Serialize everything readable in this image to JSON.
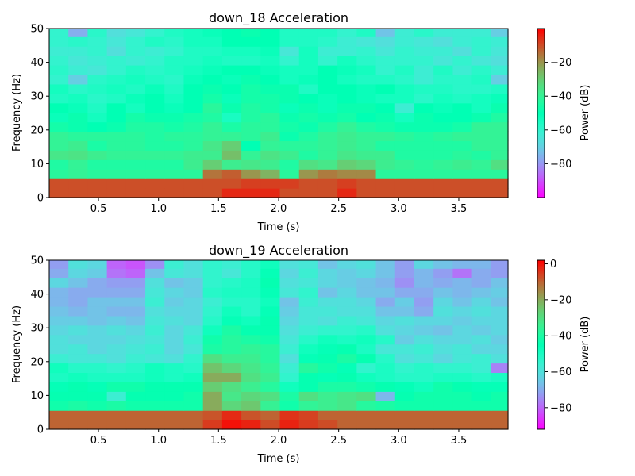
{
  "chart_data": [
    {
      "type": "heatmap",
      "title": "down_18 Acceleration",
      "xlabel": "Time (s)",
      "ylabel": "Frequency (Hz)",
      "xlim": [
        0.09,
        3.91
      ],
      "ylim": [
        0,
        50
      ],
      "x_ticks": [
        "0.5",
        "1.0",
        "1.5",
        "2.0",
        "2.5",
        "3.0",
        "3.5"
      ],
      "x_tick_values": [
        0.5,
        1.0,
        1.5,
        2.0,
        2.5,
        3.0,
        3.5
      ],
      "y_ticks": [
        "0",
        "10",
        "20",
        "30",
        "40",
        "50"
      ],
      "y_tick_values": [
        0,
        10,
        20,
        30,
        40,
        50
      ],
      "time_start": 0.09,
      "time_step": 0.16,
      "freq_step": 2.8,
      "colorbar": {
        "label": "Power (dB)",
        "range": [
          -100,
          0
        ],
        "ticks": [
          "−20",
          "−40",
          "−60",
          "−80"
        ],
        "tick_values": [
          -20,
          -40,
          -60,
          -80
        ],
        "colormap": "rainbow"
      },
      "power_db_rows_low_to_high_freq": [
        [
          -10,
          -10,
          -10,
          -10,
          -10,
          -10,
          -10,
          -10,
          -10,
          -5,
          -5,
          -5,
          -10,
          -10,
          -10,
          -5,
          -10,
          -10,
          -10,
          -10,
          -10,
          -10,
          -10,
          -10
        ],
        [
          -10,
          -10,
          -10,
          -10,
          -10,
          -10,
          -10,
          -10,
          -10,
          -10,
          -8,
          -8,
          -8,
          -10,
          -10,
          -8,
          -10,
          -10,
          -10,
          -10,
          -10,
          -10,
          -10,
          -10
        ],
        [
          -42,
          -40,
          -42,
          -42,
          -42,
          -42,
          -42,
          -42,
          -15,
          -12,
          -20,
          -25,
          -42,
          -20,
          -16,
          -18,
          -18,
          -42,
          -42,
          -42,
          -42,
          -42,
          -42,
          -42
        ],
        [
          -44,
          -40,
          -44,
          -44,
          -44,
          -44,
          -44,
          -38,
          -30,
          -38,
          -36,
          -38,
          -44,
          -34,
          -36,
          -30,
          -32,
          -38,
          -40,
          -42,
          -40,
          -38,
          -40,
          -34
        ],
        [
          -36,
          -35,
          -38,
          -40,
          -40,
          -40,
          -40,
          -38,
          -38,
          -27,
          -40,
          -35,
          -38,
          -44,
          -40,
          -36,
          -38,
          -38,
          -44,
          -44,
          -44,
          -42,
          -44,
          -40
        ],
        [
          -40,
          -38,
          -45,
          -42,
          -42,
          -44,
          -44,
          -42,
          -36,
          -30,
          -50,
          -40,
          -42,
          -42,
          -40,
          -38,
          -40,
          -44,
          -44,
          -44,
          -44,
          -44,
          -40,
          -40
        ],
        [
          -40,
          -42,
          -42,
          -42,
          -42,
          -44,
          -42,
          -42,
          -40,
          -40,
          -42,
          -38,
          -48,
          -44,
          -40,
          -38,
          -40,
          -40,
          -42,
          -44,
          -42,
          -40,
          -40,
          -40
        ],
        [
          -46,
          -48,
          -50,
          -48,
          -44,
          -44,
          -46,
          -44,
          -40,
          -45,
          -42,
          -42,
          -46,
          -48,
          -44,
          -40,
          -44,
          -46,
          -48,
          -48,
          -48,
          -46,
          -40,
          -40
        ],
        [
          -52,
          -48,
          -54,
          -50,
          -46,
          -48,
          -48,
          -46,
          -44,
          -55,
          -44,
          -42,
          -48,
          -46,
          -48,
          -46,
          -50,
          -48,
          -54,
          -48,
          -50,
          -50,
          -48,
          -44
        ],
        [
          -50,
          -52,
          -56,
          -50,
          -54,
          -50,
          -52,
          -50,
          -42,
          -48,
          -44,
          -46,
          -52,
          -48,
          -52,
          -48,
          -48,
          -50,
          -62,
          -50,
          -52,
          -50,
          -54,
          -48
        ],
        [
          -56,
          -54,
          -58,
          -56,
          -52,
          -50,
          -54,
          -50,
          -46,
          -52,
          -46,
          -46,
          -48,
          -50,
          -52,
          -50,
          -52,
          -54,
          -54,
          -58,
          -54,
          -56,
          -54,
          -52
        ],
        [
          -54,
          -58,
          -56,
          -54,
          -56,
          -52,
          -56,
          -50,
          -48,
          -50,
          -46,
          -48,
          -48,
          -56,
          -50,
          -50,
          -52,
          -50,
          -54,
          -56,
          -56,
          -58,
          -58,
          -56
        ],
        [
          -60,
          -70,
          -58,
          -56,
          -54,
          -56,
          -58,
          -52,
          -50,
          -52,
          -48,
          -50,
          -54,
          -52,
          -50,
          -54,
          -56,
          -56,
          -58,
          -62,
          -58,
          -58,
          -56,
          -70
        ],
        [
          -58,
          -62,
          -64,
          -60,
          -56,
          -58,
          -56,
          -54,
          -52,
          -50,
          -50,
          -52,
          -54,
          -54,
          -50,
          -52,
          -54,
          -60,
          -56,
          -62,
          -56,
          -62,
          -58,
          -62
        ],
        [
          -60,
          -64,
          -62,
          -60,
          -62,
          -60,
          -56,
          -56,
          -54,
          -56,
          -56,
          -54,
          -60,
          -54,
          -60,
          -54,
          -58,
          -60,
          -60,
          -60,
          -64,
          -60,
          -64,
          -66
        ],
        [
          -62,
          -62,
          -60,
          -66,
          -60,
          -62,
          -60,
          -56,
          -56,
          -54,
          -54,
          -52,
          -64,
          -54,
          -62,
          -62,
          -60,
          -64,
          -60,
          -62,
          -62,
          -66,
          -60,
          -64
        ],
        [
          -60,
          -58,
          -60,
          -64,
          -60,
          -56,
          -58,
          -54,
          -54,
          -50,
          -50,
          -50,
          -56,
          -56,
          -58,
          -62,
          -64,
          -66,
          -62,
          -64,
          -66,
          -62,
          -60,
          -62
        ],
        [
          -60,
          -76,
          -58,
          -66,
          -64,
          -60,
          -56,
          -54,
          -52,
          -50,
          -48,
          -50,
          -56,
          -56,
          -56,
          -60,
          -56,
          -72,
          -62,
          -58,
          -62,
          -62,
          -62,
          -70
        ],
        [
          -58,
          -56,
          -60,
          -62,
          -64,
          -62,
          -58,
          -56,
          -54,
          -50,
          -50,
          -48,
          -66,
          -52,
          -54,
          -56,
          -58,
          -56,
          -58,
          -60,
          -60,
          -60,
          -66,
          -68
        ],
        [
          -72,
          -56,
          -60,
          -60,
          -60,
          -62,
          -60,
          -50,
          -54,
          -52,
          -52,
          -50,
          -56,
          -52,
          -56,
          -50,
          -50,
          -62,
          -60,
          -60,
          -60,
          -60,
          -60,
          -64
        ],
        [
          -82,
          -68,
          -80,
          -56,
          -56,
          -58,
          -54,
          -52,
          -52,
          -52,
          -52,
          -56,
          -72,
          -64,
          -68,
          -66,
          -70,
          -76,
          -80,
          -90,
          -80,
          -80,
          -80,
          -84
        ]
      ]
    },
    {
      "type": "heatmap",
      "title": "down_19 Acceleration",
      "xlabel": "Time (s)",
      "ylabel": "Frequency (Hz)",
      "xlim": [
        0.09,
        3.91
      ],
      "ylim": [
        0,
        50
      ],
      "x_ticks": [
        "0.5",
        "1.0",
        "1.5",
        "2.0",
        "2.5",
        "3.0",
        "3.5"
      ],
      "x_tick_values": [
        0.5,
        1.0,
        1.5,
        2.0,
        2.5,
        3.0,
        3.5
      ],
      "y_ticks": [
        "0",
        "10",
        "20",
        "30",
        "40",
        "50"
      ],
      "y_tick_values": [
        0,
        10,
        20,
        30,
        40,
        50
      ],
      "time_start": 0.09,
      "time_step": 0.16,
      "freq_step": 2.8,
      "colorbar": {
        "label": "Power (dB)",
        "range": [
          -92,
          2
        ],
        "ticks": [
          "0",
          "−20",
          "−40",
          "−60",
          "−80"
        ],
        "tick_values": [
          0,
          -20,
          -40,
          -60,
          -80
        ],
        "colormap": "rainbow"
      },
      "power_db_rows_low_to_high_freq": [
        [
          -10,
          -10,
          -10,
          -10,
          -10,
          -10,
          -10,
          -10,
          -5,
          0,
          -2,
          -7,
          -2,
          -5,
          -7,
          -10,
          -10,
          -10,
          -10,
          -10,
          -10,
          -10,
          -10,
          -10
        ],
        [
          -10,
          -10,
          -10,
          -10,
          -10,
          -10,
          -10,
          -10,
          -8,
          -3,
          -8,
          -10,
          -4,
          -6,
          -10,
          -10,
          -10,
          -10,
          -10,
          -10,
          -10,
          -10,
          -10,
          -10
        ],
        [
          -42,
          -40,
          -42,
          -40,
          -42,
          -42,
          -42,
          -42,
          -20,
          -28,
          -25,
          -35,
          -42,
          -36,
          -34,
          -32,
          -38,
          -40,
          -42,
          -42,
          -42,
          -42,
          -42,
          -42
        ],
        [
          -44,
          -44,
          -44,
          -56,
          -44,
          -44,
          -44,
          -42,
          -20,
          -32,
          -28,
          -30,
          -40,
          -30,
          -34,
          -32,
          -30,
          -68,
          -44,
          -42,
          -42,
          -42,
          -44,
          -42
        ],
        [
          -46,
          -44,
          -46,
          -42,
          -42,
          -44,
          -44,
          -44,
          -26,
          -30,
          -34,
          -38,
          -48,
          -44,
          -40,
          -40,
          -42,
          -44,
          -46,
          -48,
          -42,
          -44,
          -46,
          -46
        ],
        [
          -50,
          -48,
          -50,
          -50,
          -50,
          -48,
          -50,
          -48,
          -20,
          -20,
          -30,
          -34,
          -54,
          -44,
          -46,
          -44,
          -48,
          -50,
          -52,
          -52,
          -50,
          -50,
          -52,
          -50
        ],
        [
          -48,
          -52,
          -52,
          -54,
          -52,
          -48,
          -50,
          -52,
          -24,
          -28,
          -32,
          -36,
          -56,
          -38,
          -42,
          -46,
          -54,
          -50,
          -54,
          -52,
          -54,
          -54,
          -56,
          -76
        ],
        [
          -56,
          -58,
          -58,
          -60,
          -56,
          -58,
          -60,
          -54,
          -30,
          -34,
          -34,
          -38,
          -60,
          -46,
          -44,
          -40,
          -44,
          -52,
          -60,
          -58,
          -62,
          -58,
          -56,
          -60
        ],
        [
          -60,
          -58,
          -62,
          -60,
          -58,
          -56,
          -62,
          -58,
          -40,
          -38,
          -36,
          -38,
          -56,
          -48,
          -46,
          -44,
          -50,
          -58,
          -58,
          -56,
          -60,
          -58,
          -62,
          -62
        ],
        [
          -60,
          -62,
          -62,
          -62,
          -60,
          -58,
          -62,
          -56,
          -42,
          -38,
          -40,
          -42,
          -58,
          -52,
          -48,
          -50,
          -48,
          -52,
          -64,
          -60,
          -62,
          -62,
          -60,
          -64
        ],
        [
          -62,
          -60,
          -62,
          -60,
          -62,
          -56,
          -62,
          -58,
          -48,
          -40,
          -44,
          -44,
          -60,
          -56,
          -54,
          -54,
          -52,
          -60,
          -62,
          -64,
          -66,
          -62,
          -64,
          -62
        ],
        [
          -64,
          -64,
          -66,
          -64,
          -66,
          -58,
          -60,
          -62,
          -52,
          -46,
          -48,
          -44,
          -62,
          -58,
          -60,
          -56,
          -58,
          -62,
          -60,
          -62,
          -62,
          -64,
          -62,
          -62
        ],
        [
          -66,
          -68,
          -66,
          -68,
          -68,
          -60,
          -62,
          -62,
          -54,
          -48,
          -52,
          -46,
          -64,
          -58,
          -58,
          -60,
          -60,
          -66,
          -66,
          -70,
          -60,
          -62,
          -60,
          -62
        ],
        [
          -68,
          -70,
          -66,
          -66,
          -66,
          -56,
          -64,
          -62,
          -56,
          -52,
          -52,
          -48,
          -66,
          -56,
          -60,
          -60,
          -62,
          -70,
          -64,
          -72,
          -62,
          -66,
          -62,
          -66
        ],
        [
          -68,
          -70,
          -70,
          -70,
          -70,
          -58,
          -62,
          -64,
          -52,
          -50,
          -50,
          -46,
          -58,
          -54,
          -66,
          -62,
          -66,
          -66,
          -70,
          -70,
          -66,
          -68,
          -66,
          -64
        ],
        [
          -62,
          -66,
          -70,
          -72,
          -72,
          -60,
          -66,
          -64,
          -54,
          -52,
          -50,
          -44,
          -60,
          -58,
          -62,
          -64,
          -66,
          -68,
          -74,
          -68,
          -70,
          -68,
          -70,
          -66
        ],
        [
          -70,
          -62,
          -64,
          -78,
          -80,
          -66,
          -58,
          -60,
          -54,
          -58,
          -52,
          -46,
          -62,
          -56,
          -62,
          -64,
          -62,
          -66,
          -72,
          -68,
          -72,
          -78,
          -70,
          -72
        ],
        [
          -72,
          -60,
          -62,
          -80,
          -82,
          -74,
          -56,
          -60,
          -54,
          -56,
          -52,
          -48,
          -60,
          -58,
          -66,
          -62,
          -60,
          -66,
          -72,
          -62,
          -66,
          -68,
          -68,
          -72
        ],
        [
          -70,
          -62,
          -60,
          -70,
          -72,
          -64,
          -58,
          -62,
          -56,
          -54,
          -56,
          -52,
          -58,
          -70,
          -62,
          -64,
          -70,
          -66,
          -72,
          -66,
          -66,
          -66,
          -66,
          -70
        ],
        [
          -72,
          -60,
          -66,
          -70,
          -70,
          -66,
          -56,
          -54,
          -48,
          -54,
          -52,
          -50,
          -62,
          -64,
          -86,
          -62,
          -66,
          -60,
          -62,
          -60,
          -68,
          -66,
          -62,
          -70
        ],
        [
          -70,
          -82,
          -78,
          -82,
          -74,
          -70,
          -56,
          -56,
          -46,
          -50,
          -52,
          -52,
          -68,
          -60,
          -62,
          -86,
          -80,
          -82,
          -70,
          -70,
          -78,
          -76,
          -80,
          -90
        ]
      ]
    }
  ]
}
